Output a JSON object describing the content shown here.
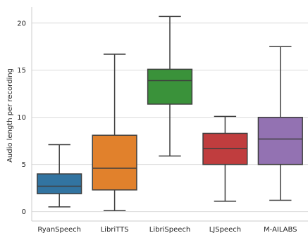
{
  "chart_data": {
    "type": "box",
    "title": "",
    "xlabel": "",
    "ylabel": "Audio length per recording",
    "ylim": [
      -1,
      21.7
    ],
    "yticks": [
      0,
      5,
      10,
      15,
      20
    ],
    "grid": true,
    "legend": "none",
    "categories": [
      "RyanSpeech",
      "LibriTTS",
      "LibriSpeech",
      "LJSpeech",
      "M-AILABS"
    ],
    "boxes": [
      {
        "name": "RyanSpeech",
        "color": "#3274a1",
        "whisker_low": 0.5,
        "q1": 1.9,
        "median": 2.7,
        "q3": 4.0,
        "whisker_high": 7.1
      },
      {
        "name": "LibriTTS",
        "color": "#e1812c",
        "whisker_low": 0.1,
        "q1": 2.3,
        "median": 4.6,
        "q3": 8.1,
        "whisker_high": 16.7
      },
      {
        "name": "LibriSpeech",
        "color": "#3a923a",
        "whisker_low": 5.9,
        "q1": 11.4,
        "median": 13.9,
        "q3": 15.1,
        "whisker_high": 20.7
      },
      {
        "name": "LJSpeech",
        "color": "#c03d3e",
        "whisker_low": 1.1,
        "q1": 5.0,
        "median": 6.7,
        "q3": 8.3,
        "whisker_high": 10.1
      },
      {
        "name": "M-AILABS",
        "color": "#9372b2",
        "whisker_low": 1.2,
        "q1": 5.0,
        "median": 7.7,
        "q3": 10.0,
        "whisker_high": 17.5
      }
    ]
  }
}
